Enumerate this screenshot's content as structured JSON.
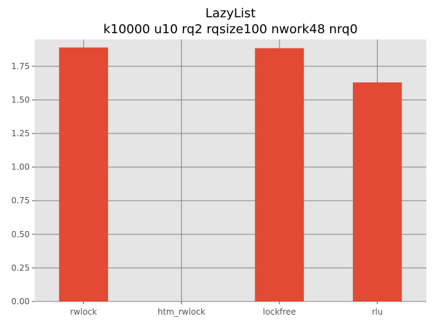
{
  "chart_data": {
    "type": "bar",
    "title_lines": [
      "LazyList",
      "k10000 u10 rq2 rqsize100 nwork48 nrq0"
    ],
    "xlabel": "",
    "ylabel": "",
    "categories": [
      "rwlock",
      "htm_rwlock",
      "lockfree",
      "rlu"
    ],
    "values": [
      1.89,
      0,
      1.885,
      1.63
    ],
    "ylim": [
      0,
      1.95
    ],
    "yticks": [
      0.0,
      0.25,
      0.5,
      0.75,
      1.0,
      1.25,
      1.5,
      1.75
    ],
    "ytick_labels": [
      "0.00",
      "0.25",
      "0.50",
      "0.75",
      "1.00",
      "1.25",
      "1.50",
      "1.75"
    ],
    "grid": true,
    "colors": {
      "bar": "#E24A33",
      "plot_background": "#E5E5E5",
      "grid": "#808080"
    }
  }
}
